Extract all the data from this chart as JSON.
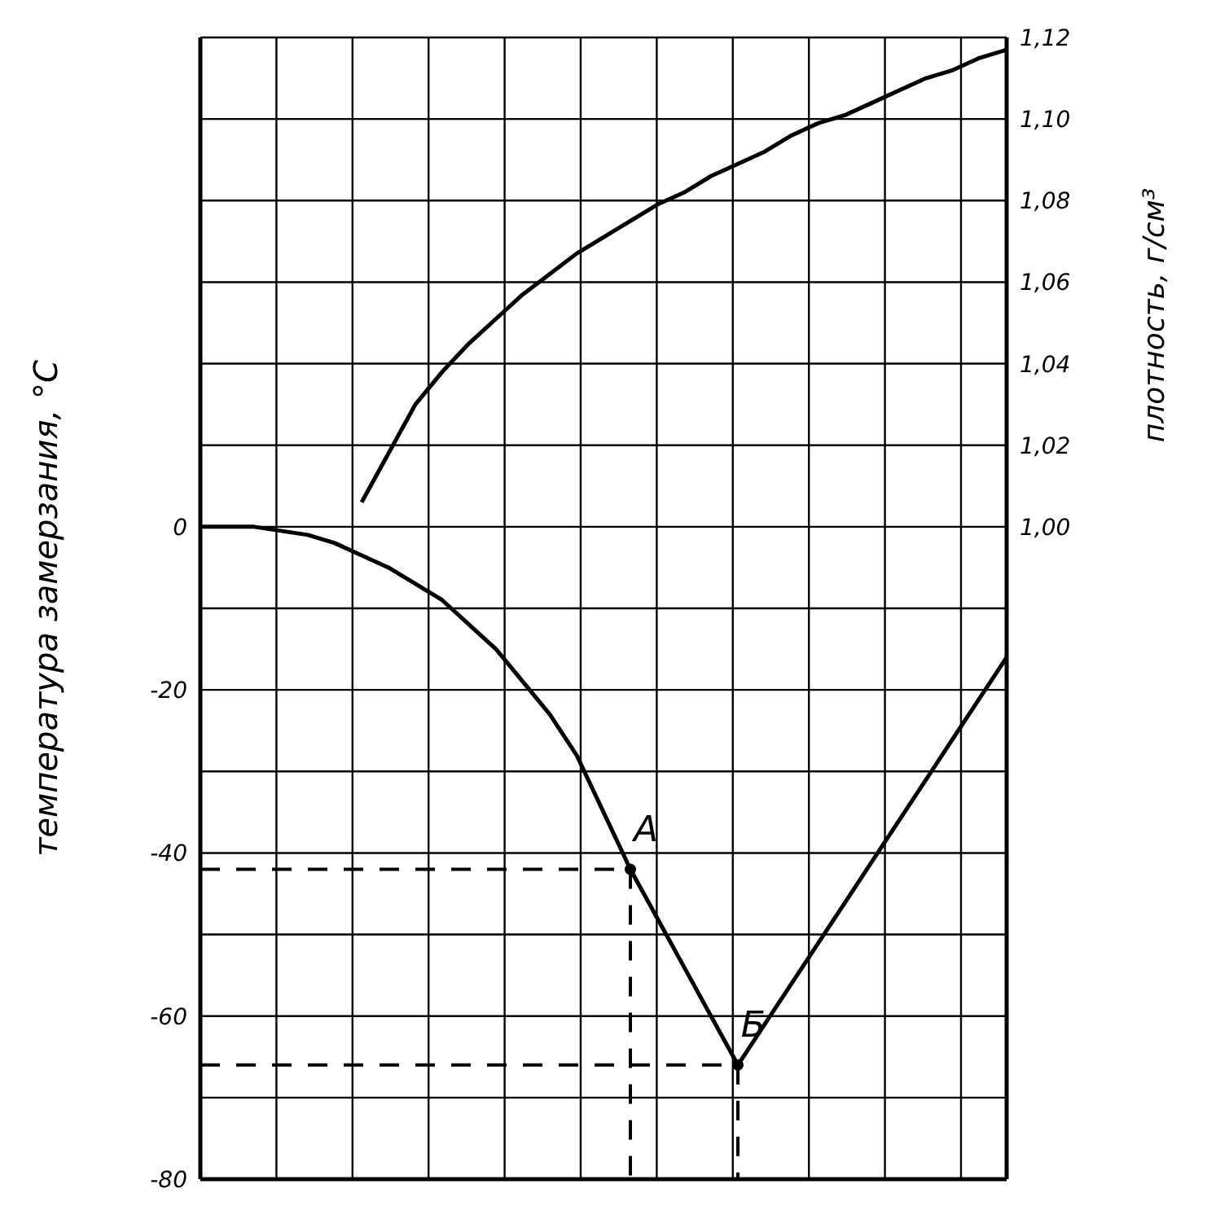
{
  "chart_data": {
    "type": "line",
    "ylabel": "температура замерзания, °C",
    "y2label": "плотность, г/см³",
    "categories": [
      null,
      null,
      null,
      null,
      null,
      null,
      null,
      null,
      null,
      null,
      null,
      null,
      null,
      null,
      null,
      null,
      null,
      null,
      null,
      null,
      null,
      null,
      null,
      null,
      null,
      null,
      null,
      null,
      null,
      null,
      null
    ],
    "series": [
      {
        "color": "#000000",
        "values": [
          0,
          0,
          0,
          -0.5,
          -1,
          -2,
          -3.5,
          -5,
          -7,
          -9,
          -12,
          -15,
          -19,
          -23,
          -28,
          -35,
          -42,
          -48,
          -54,
          -60,
          -66,
          -61,
          -56,
          -51,
          -46,
          -41,
          -36,
          -31,
          -26,
          -21,
          -16
        ]
      },
      {
        "color": "#000000",
        "axis": "y2",
        "values": [
          null,
          null,
          null,
          null,
          null,
          null,
          1.006,
          1.018,
          1.03,
          1.038,
          1.045,
          1.051,
          1.057,
          1.062,
          1.067,
          1.071,
          1.075,
          1.079,
          1.082,
          1.086,
          1.089,
          1.092,
          1.096,
          1.099,
          1.101,
          1.104,
          1.107,
          1.11,
          1.112,
          1.115,
          1.117
        ]
      },
      {
        "type": "step",
        "line_style": "dashed",
        "color": "#000000",
        "values": [
          -42,
          -42,
          -42,
          -42,
          -42,
          -42,
          -42,
          -42,
          -42,
          -42,
          -42,
          -42,
          -42,
          -42,
          -42,
          -42,
          -42,
          -80,
          null,
          null,
          null,
          null,
          null,
          null,
          null,
          null,
          null,
          null,
          null,
          null,
          null
        ]
      },
      {
        "type": "step",
        "line_style": "dashed",
        "color": "#000000",
        "values": [
          -66,
          -66,
          -66,
          -66,
          -66,
          -66,
          -66,
          -66,
          -66,
          -66,
          -66,
          -66,
          -66,
          -66,
          -66,
          -66,
          -66,
          -66,
          -66,
          -66,
          -66,
          -80,
          null,
          null,
          null,
          null,
          null,
          null,
          null,
          null,
          null
        ]
      }
    ],
    "ylim": [
      -80,
      60
    ],
    "yticks": [
      -80,
      {
        "value": -70,
        "label": null
      },
      -60,
      {
        "value": -50,
        "label": null
      },
      -40,
      {
        "value": -30,
        "label": null
      },
      -20,
      {
        "value": -10,
        "label": null
      },
      0,
      {
        "value": 10,
        "label": null
      },
      {
        "value": 20,
        "label": null
      },
      {
        "value": 30,
        "label": null
      },
      {
        "value": 40,
        "label": null
      },
      {
        "value": 50,
        "label": null
      },
      {
        "value": 60,
        "label": null
      }
    ],
    "y2lim": [
      0.84,
      1.12
    ],
    "y2ticks": [
      {
        "value": 1.0,
        "label": "1,00"
      },
      {
        "value": 1.02,
        "label": "1,02"
      },
      {
        "value": 1.04,
        "label": "1,04"
      },
      {
        "value": 1.06,
        "label": "1,06"
      },
      {
        "value": 1.08,
        "label": "1,08"
      },
      {
        "value": 1.1,
        "label": "1,10"
      },
      {
        "value": 1.12,
        "label": "1,12"
      }
    ],
    "annotations": [
      "A",
      "Б"
    ],
    "grid": true,
    "marker": "none",
    "tick_labels": "y"
  }
}
